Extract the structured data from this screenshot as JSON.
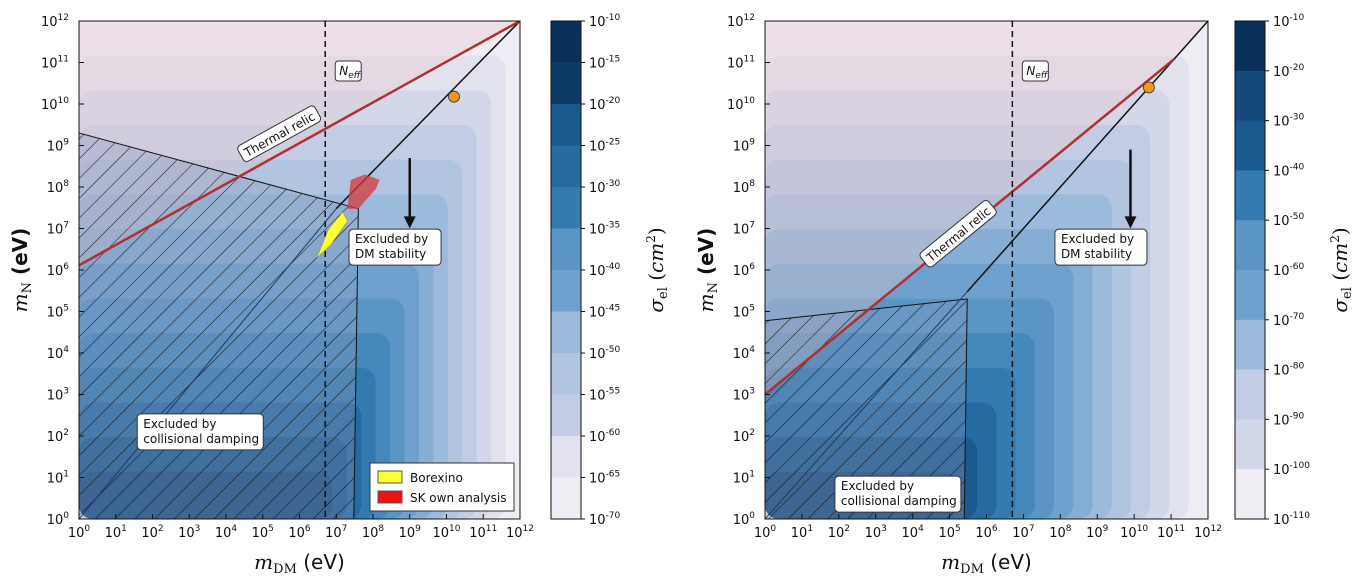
{
  "chart_data": [
    {
      "type": "heatmap",
      "xlabel": "m_DM (eV)",
      "ylabel": "m_N (eV)",
      "x_axis": {
        "scale": "log",
        "range": [
          1,
          1000000000000.0
        ],
        "tick_exponents": [
          0,
          1,
          2,
          3,
          4,
          5,
          6,
          7,
          8,
          9,
          10,
          11,
          12
        ]
      },
      "y_axis": {
        "scale": "log",
        "range": [
          1,
          1000000000000.0
        ],
        "tick_exponents": [
          0,
          1,
          2,
          3,
          4,
          5,
          6,
          7,
          8,
          9,
          10,
          11,
          12
        ]
      },
      "colorbar": {
        "label": "σ_el (cm²)",
        "scale": "log",
        "tick_exponents": [
          -10,
          -15,
          -20,
          -25,
          -30,
          -35,
          -40,
          -45,
          -50,
          -55,
          -60,
          -65,
          -70
        ]
      },
      "neff_line_log_mdm": 6.7,
      "neff_label": "N_eff",
      "thermal_relic": {
        "label": "Thermal relic",
        "points": [
          [
            1,
            1300000.0
          ],
          [
            1000000000000.0,
            1000000000000.0
          ]
        ]
      },
      "dm_stability_boundary": {
        "points": [
          [
            10000000.0,
            30000000.0
          ],
          [
            1000000000000.0,
            1000000000000.0
          ]
        ]
      },
      "collisional_damping_boundary": {
        "points": [
          [
            1,
            2000000000.0
          ],
          [
            40000000.0,
            30000000.0
          ],
          [
            30000000.0,
            1
          ]
        ]
      },
      "marker": {
        "x": 16000000000.0,
        "y": 15000000000.0,
        "color": "#f29a17"
      },
      "annotations": [
        {
          "text": [
            "Excluded by",
            "DM stability"
          ],
          "x_log": 8.6,
          "y_log": 6.55
        },
        {
          "text": [
            "Excluded by",
            "collisional damping"
          ],
          "x_log": 3.3,
          "y_log": 2.1
        }
      ],
      "legend": {
        "position": "lower-right",
        "entries": [
          {
            "label": "Borexino",
            "color": "#ffff33"
          },
          {
            "label": "SK own analysis",
            "color": "#ee1111"
          }
        ]
      }
    },
    {
      "type": "heatmap",
      "xlabel": "m_DM (eV)",
      "ylabel": "m_N (eV)",
      "x_axis": {
        "scale": "log",
        "range": [
          1,
          1000000000000.0
        ],
        "tick_exponents": [
          0,
          1,
          2,
          3,
          4,
          5,
          6,
          7,
          8,
          9,
          10,
          11,
          12
        ]
      },
      "y_axis": {
        "scale": "log",
        "range": [
          1,
          1000000000000.0
        ],
        "tick_exponents": [
          0,
          1,
          2,
          3,
          4,
          5,
          6,
          7,
          8,
          9,
          10,
          11,
          12
        ]
      },
      "colorbar": {
        "label": "σ_el (cm²)",
        "scale": "log",
        "tick_exponents": [
          -10,
          -20,
          -30,
          -40,
          -50,
          -60,
          -70,
          -80,
          -90,
          -100,
          -110
        ]
      },
      "neff_line_log_mdm": 6.7,
      "neff_label": "N_eff",
      "thermal_relic": {
        "label": "Thermal relic",
        "points": [
          [
            1,
            1000.0
          ],
          [
            120000000000.0,
            120000000000.0
          ]
        ]
      },
      "dm_stability_boundary": {
        "points": [
          [
            300000.0,
            300000.0
          ],
          [
            1000000000000.0,
            1000000000000.0
          ]
        ]
      },
      "collisional_damping_boundary": {
        "points": [
          [
            1,
            60000.0
          ],
          [
            300000.0,
            200000.0
          ],
          [
            250000.0,
            1
          ]
        ]
      },
      "marker": {
        "x": 25000000000.0,
        "y": 25000000000.0,
        "color": "#f29a17"
      },
      "annotations": [
        {
          "text": [
            "Excluded by",
            "DM stability"
          ],
          "x_log": 9.1,
          "y_log": 6.55
        },
        {
          "text": [
            "Excluded by",
            "collisional damping"
          ],
          "x_log": 3.6,
          "y_log": 0.6
        }
      ]
    }
  ]
}
